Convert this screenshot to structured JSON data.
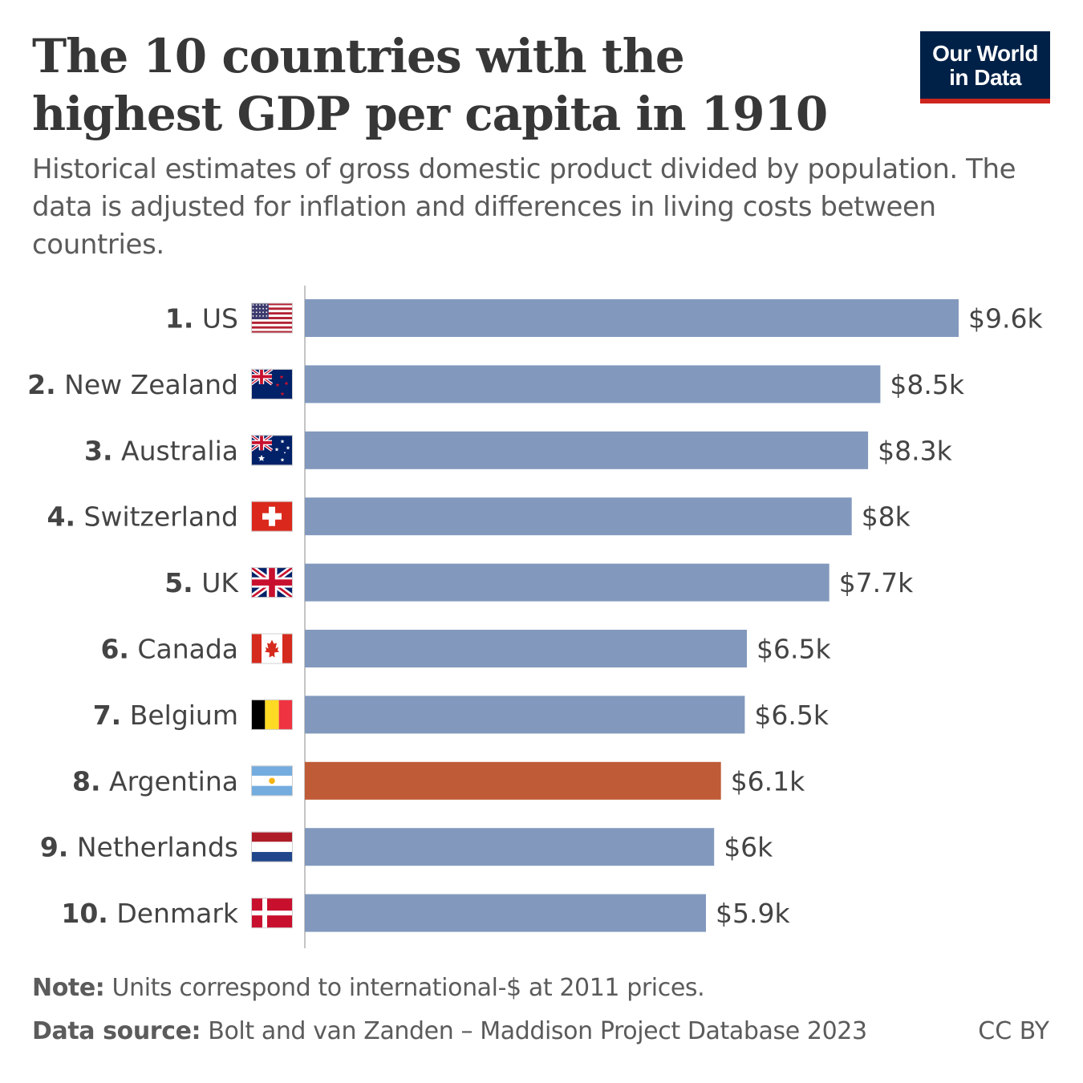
{
  "title": "The 10 countries with the highest GDP per capita in 1910",
  "subtitle": "Historical estimates of gross domestic product divided by population. The data is adjusted for inflation and differences in living costs between countries.",
  "logo": {
    "line1": "Our World",
    "line2": "in Data",
    "bg_color": "#002147",
    "accent_color": "#ce261e"
  },
  "note": {
    "label": "Note:",
    "text": " Units correspond to international-$ at 2011 prices."
  },
  "source": {
    "label": "Data source:",
    "text": " Bolt and van Zanden – Maddison Project Database 2023"
  },
  "license": "CC BY",
  "colors": {
    "bar_default": "#8299bd",
    "bar_highlight": "#bf5b37"
  },
  "chart_data": {
    "type": "bar",
    "orientation": "horizontal",
    "categories": [
      "US",
      "New Zealand",
      "Australia",
      "Switzerland",
      "UK",
      "Canada",
      "Belgium",
      "Argentina",
      "Netherlands",
      "Denmark"
    ],
    "ranks": [
      "1.",
      "2.",
      "3.",
      "4.",
      "5.",
      "6.",
      "7.",
      "8.",
      "9.",
      "10."
    ],
    "values": [
      9600,
      8450,
      8270,
      8030,
      7700,
      6490,
      6460,
      6110,
      6010,
      5890
    ],
    "value_labels": [
      "$9.6k",
      "$8.5k",
      "$8.3k",
      "$8k",
      "$7.7k",
      "$6.5k",
      "$6.5k",
      "$6.1k",
      "$6k",
      "$5.9k"
    ],
    "flags": [
      "flag-us",
      "flag-nz",
      "flag-au",
      "flag-ch",
      "flag-uk",
      "flag-ca",
      "flag-be",
      "flag-ar",
      "flag-nl",
      "flag-dk"
    ],
    "highlight": "Argentina",
    "xlim": [
      0,
      9600
    ],
    "grid": false,
    "legend": "none"
  }
}
